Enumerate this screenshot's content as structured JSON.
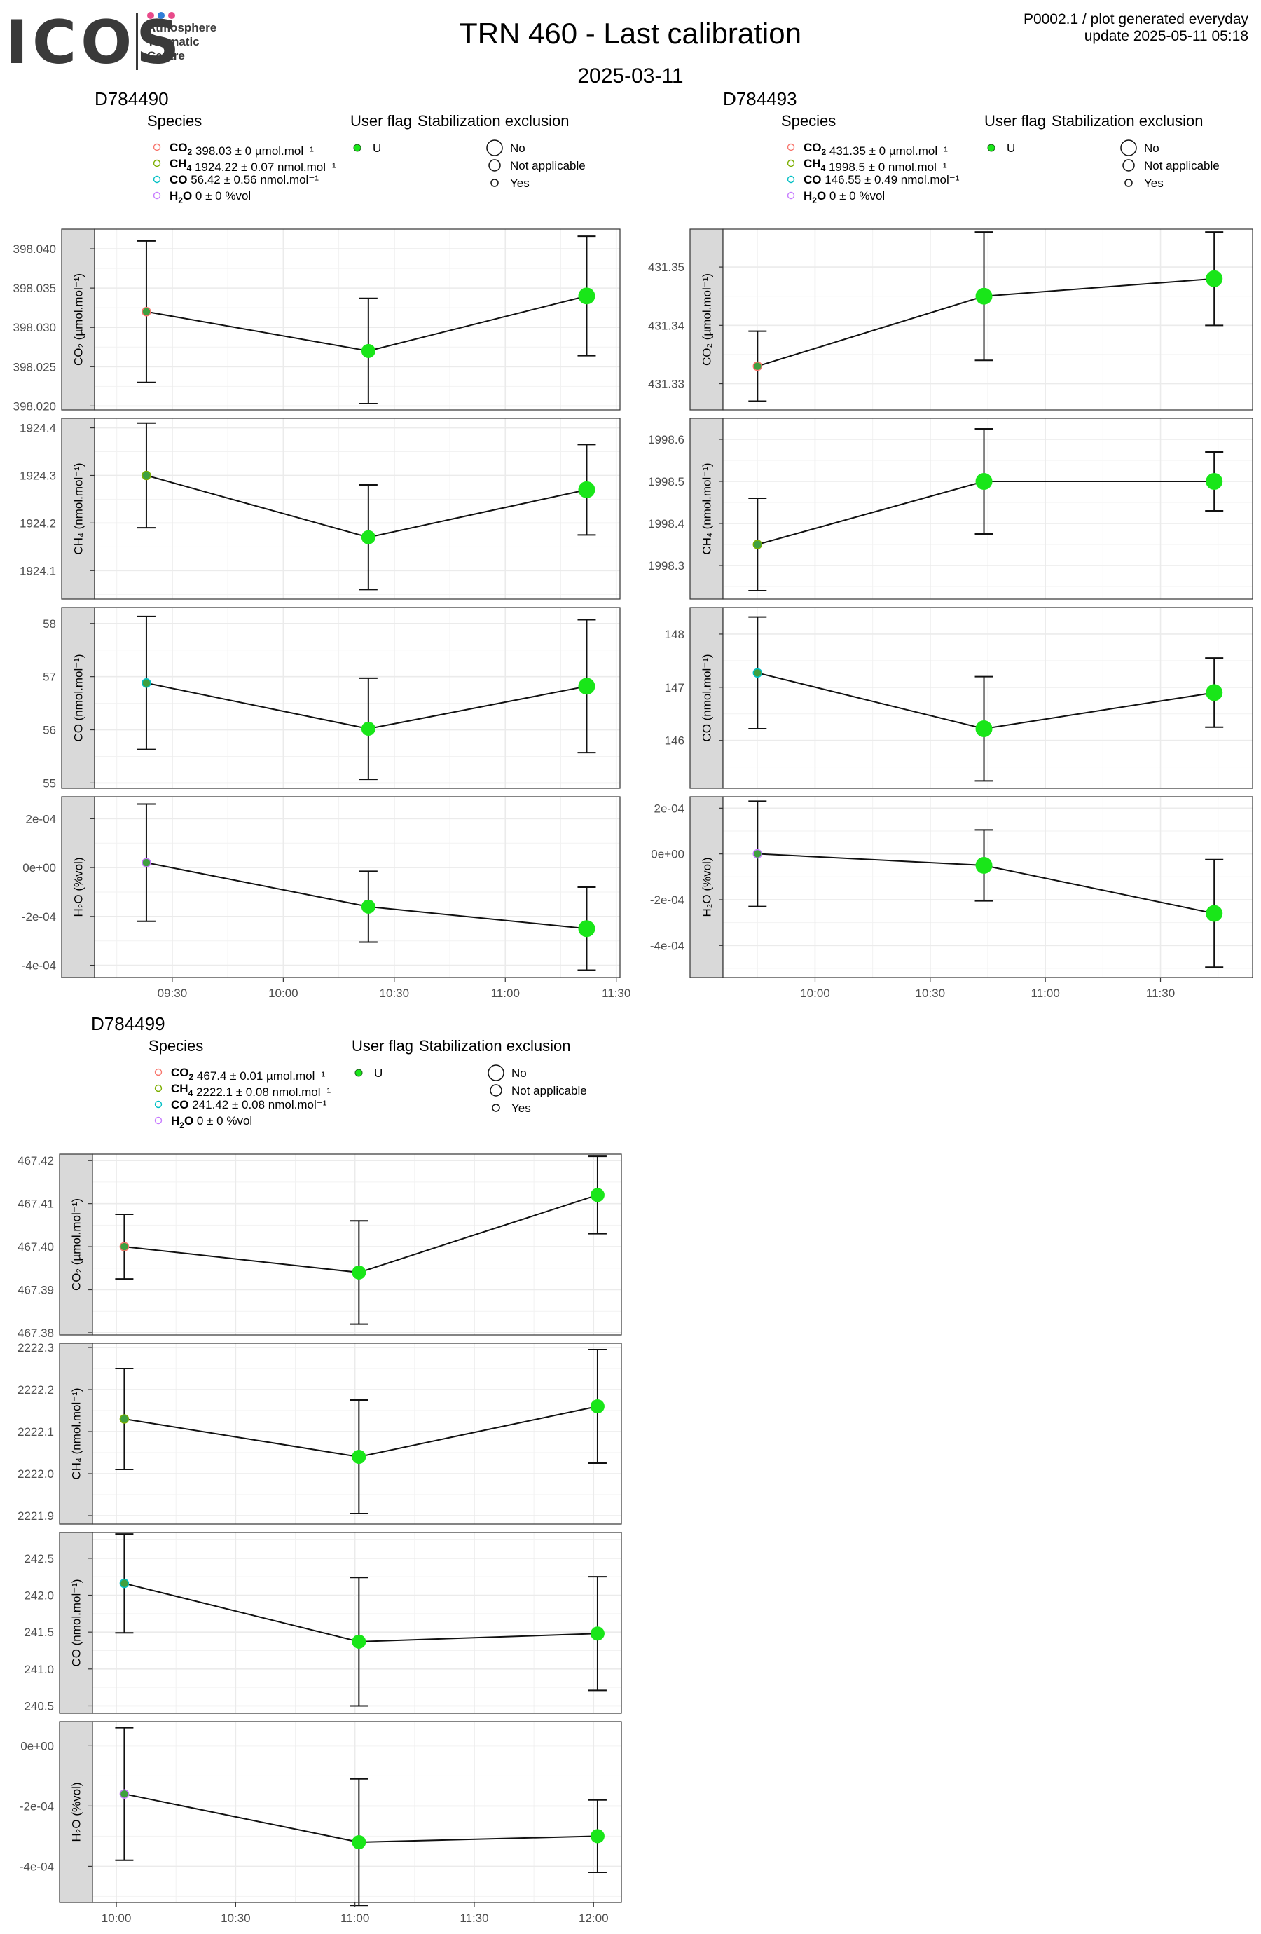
{
  "header": {
    "title": "TRN 460 - Last calibration",
    "date": "2025-03-11",
    "meta_line1": "P0002.1 / plot generated everyday",
    "meta_line2": "update  2025-05-11 05:18",
    "logo_text": "ICOS",
    "logo_sub": [
      "Atmosphere",
      "Thematic",
      "Centre"
    ],
    "logo_dot_colors": [
      "#e84a8a",
      "#2f7ed8",
      "#e84a8a"
    ]
  },
  "legend_common": {
    "species_title": "Species",
    "user_flag_title": "User flag",
    "stab_title": "Stabilization exclusion",
    "user_flag_items": [
      "U"
    ],
    "stab_items": [
      "No",
      "Not applicable",
      "Yes"
    ]
  },
  "colors": {
    "CO2": "#f8766d",
    "CH4": "#7cae00",
    "CO": "#00bfc4",
    "H2O": "#c77cff",
    "point": "#19e619",
    "point_dark": "#3fa03f",
    "strip": "#d9d9d9",
    "grid": "#ebebeb"
  },
  "chart_data": [
    {
      "type": "scatter",
      "panel_title": "D784490",
      "legend_species": [
        {
          "name": "CO2",
          "text": "398.03 ± 0 µmol.mol⁻¹"
        },
        {
          "name": "CH4",
          "text": "1924.22 ± 0.07 nmol.mol⁻¹"
        },
        {
          "name": "CO",
          "text": "56.42 ± 0.56 nmol.mol⁻¹"
        },
        {
          "name": "H2O",
          "text": "0 ± 0 %vol"
        }
      ],
      "x": [
        "09:23",
        "10:23",
        "11:22"
      ],
      "x_ticks": [
        "09:30",
        "10:00",
        "10:30",
        "11:00",
        "11:30"
      ],
      "x_range": [
        "09:09",
        "11:31"
      ],
      "series": [
        {
          "name": "CO2",
          "strip": "CO₂ (µmol.mol⁻¹)",
          "values": [
            398.032,
            398.027,
            398.034
          ],
          "err": [
            0.009,
            0.0067,
            0.0076
          ],
          "ylim": [
            398.0195,
            398.0425
          ],
          "ticks": [
            "398.020",
            "398.025",
            "398.030",
            "398.035",
            "398.040"
          ]
        },
        {
          "name": "CH4",
          "strip": "CH₄ (nmol.mol⁻¹)",
          "values": [
            1924.3,
            1924.17,
            1924.27
          ],
          "err": [
            0.11,
            0.11,
            0.095
          ],
          "ylim": [
            1924.04,
            1924.42
          ],
          "ticks": [
            "1924.1",
            "1924.2",
            "1924.3",
            "1924.4"
          ]
        },
        {
          "name": "CO",
          "strip": "CO (nmol.mol⁻¹)",
          "values": [
            56.88,
            56.02,
            56.82
          ],
          "err": [
            1.25,
            0.95,
            1.25
          ],
          "ylim": [
            54.9,
            58.3
          ],
          "ticks": [
            "55",
            "56",
            "57",
            "58"
          ]
        },
        {
          "name": "H2O",
          "strip": "H₂O (%vol)",
          "values": [
            2e-05,
            -0.00016,
            -0.00025
          ],
          "err": [
            0.00024,
            0.000145,
            0.00017
          ],
          "ylim": [
            -0.00045,
            0.00029
          ],
          "ticks": [
            "-4e-04",
            "-2e-04",
            "0e+00",
            "2e-04"
          ]
        }
      ],
      "point_size": [
        1,
        2,
        3
      ]
    },
    {
      "type": "scatter",
      "panel_title": "D784493",
      "legend_species": [
        {
          "name": "CO2",
          "text": "431.35 ± 0 µmol.mol⁻¹"
        },
        {
          "name": "CH4",
          "text": "1998.5 ± 0 nmol.mol⁻¹"
        },
        {
          "name": "CO",
          "text": "146.55 ± 0.49 nmol.mol⁻¹"
        },
        {
          "name": "H2O",
          "text": "0 ± 0 %vol"
        }
      ],
      "x": [
        "09:45",
        "10:44",
        "11:44"
      ],
      "x_ticks": [
        "10:00",
        "10:30",
        "11:00",
        "11:30"
      ],
      "x_range": [
        "09:36",
        "11:54"
      ],
      "series": [
        {
          "name": "CO2",
          "strip": "CO₂ (µmol.mol⁻¹)",
          "values": [
            431.333,
            431.345,
            431.348
          ],
          "err": [
            0.006,
            0.011,
            0.008
          ],
          "ylim": [
            431.3255,
            431.3565
          ],
          "ticks": [
            "431.33",
            "431.34",
            "431.35"
          ]
        },
        {
          "name": "CH4",
          "strip": "CH₄ (nmol.mol⁻¹)",
          "values": [
            1998.35,
            1998.5,
            1998.5
          ],
          "err": [
            0.11,
            0.125,
            0.07
          ],
          "ylim": [
            1998.22,
            1998.65
          ],
          "ticks": [
            "1998.3",
            "1998.4",
            "1998.5",
            "1998.6"
          ]
        },
        {
          "name": "CO",
          "strip": "CO (nmol.mol⁻¹)",
          "values": [
            147.27,
            146.22,
            146.9
          ],
          "err": [
            1.05,
            0.98,
            0.65
          ],
          "ylim": [
            145.1,
            148.5
          ],
          "ticks": [
            "146",
            "147",
            "148"
          ]
        },
        {
          "name": "H2O",
          "strip": "H₂O (%vol)",
          "values": [
            5e-07,
            -5e-05,
            -0.00026
          ],
          "err": [
            0.00023,
            0.000155,
            0.000235
          ],
          "ylim": [
            -0.00054,
            0.00025
          ],
          "ticks": [
            "-4e-04",
            "-2e-04",
            "0e+00",
            "2e-04"
          ]
        }
      ],
      "point_size": [
        1,
        3,
        3
      ]
    },
    {
      "type": "scatter",
      "panel_title": "D784499",
      "legend_species": [
        {
          "name": "CO2",
          "text": "467.4 ± 0.01 µmol.mol⁻¹"
        },
        {
          "name": "CH4",
          "text": "2222.1 ± 0.08 nmol.mol⁻¹"
        },
        {
          "name": "CO",
          "text": "241.42 ± 0.08 nmol.mol⁻¹"
        },
        {
          "name": "H2O",
          "text": "0 ± 0 %vol"
        }
      ],
      "x": [
        "10:02",
        "11:01",
        "12:01"
      ],
      "x_ticks": [
        "10:00",
        "10:30",
        "11:00",
        "11:30",
        "12:00"
      ],
      "x_range": [
        "09:54",
        "12:07"
      ],
      "series": [
        {
          "name": "CO2",
          "strip": "CO₂ (µmol.mol⁻¹)",
          "values": [
            467.4,
            467.394,
            467.412
          ],
          "err": [
            0.0075,
            0.012,
            0.009
          ],
          "ylim": [
            467.3795,
            467.4215
          ],
          "ticks": [
            "467.38",
            "467.39",
            "467.40",
            "467.41",
            "467.42"
          ]
        },
        {
          "name": "CH4",
          "strip": "CH₄ (nmol.mol⁻¹)",
          "values": [
            2222.13,
            2222.04,
            2222.16
          ],
          "err": [
            0.12,
            0.135,
            0.135
          ],
          "ylim": [
            2221.88,
            2222.31
          ],
          "ticks": [
            "2221.9",
            "2222.0",
            "2222.1",
            "2222.2",
            "2222.3"
          ]
        },
        {
          "name": "CO",
          "strip": "CO (nmol.mol⁻¹)",
          "values": [
            242.16,
            241.37,
            241.48
          ],
          "err": [
            0.67,
            0.87,
            0.77
          ],
          "ylim": [
            240.4,
            242.85
          ],
          "ticks": [
            "240.5",
            "241.0",
            "241.5",
            "242.0",
            "242.5"
          ]
        },
        {
          "name": "H2O",
          "strip": "H₂O (%vol)",
          "values": [
            -0.00016,
            -0.00032,
            -0.0003
          ],
          "err": [
            0.00022,
            0.00021,
            0.00012
          ],
          "ylim": [
            -0.00052,
            8e-05
          ],
          "ticks": [
            "-4e-04",
            "-2e-04",
            "0e+00"
          ]
        }
      ],
      "point_size": [
        1,
        2,
        2
      ]
    }
  ]
}
